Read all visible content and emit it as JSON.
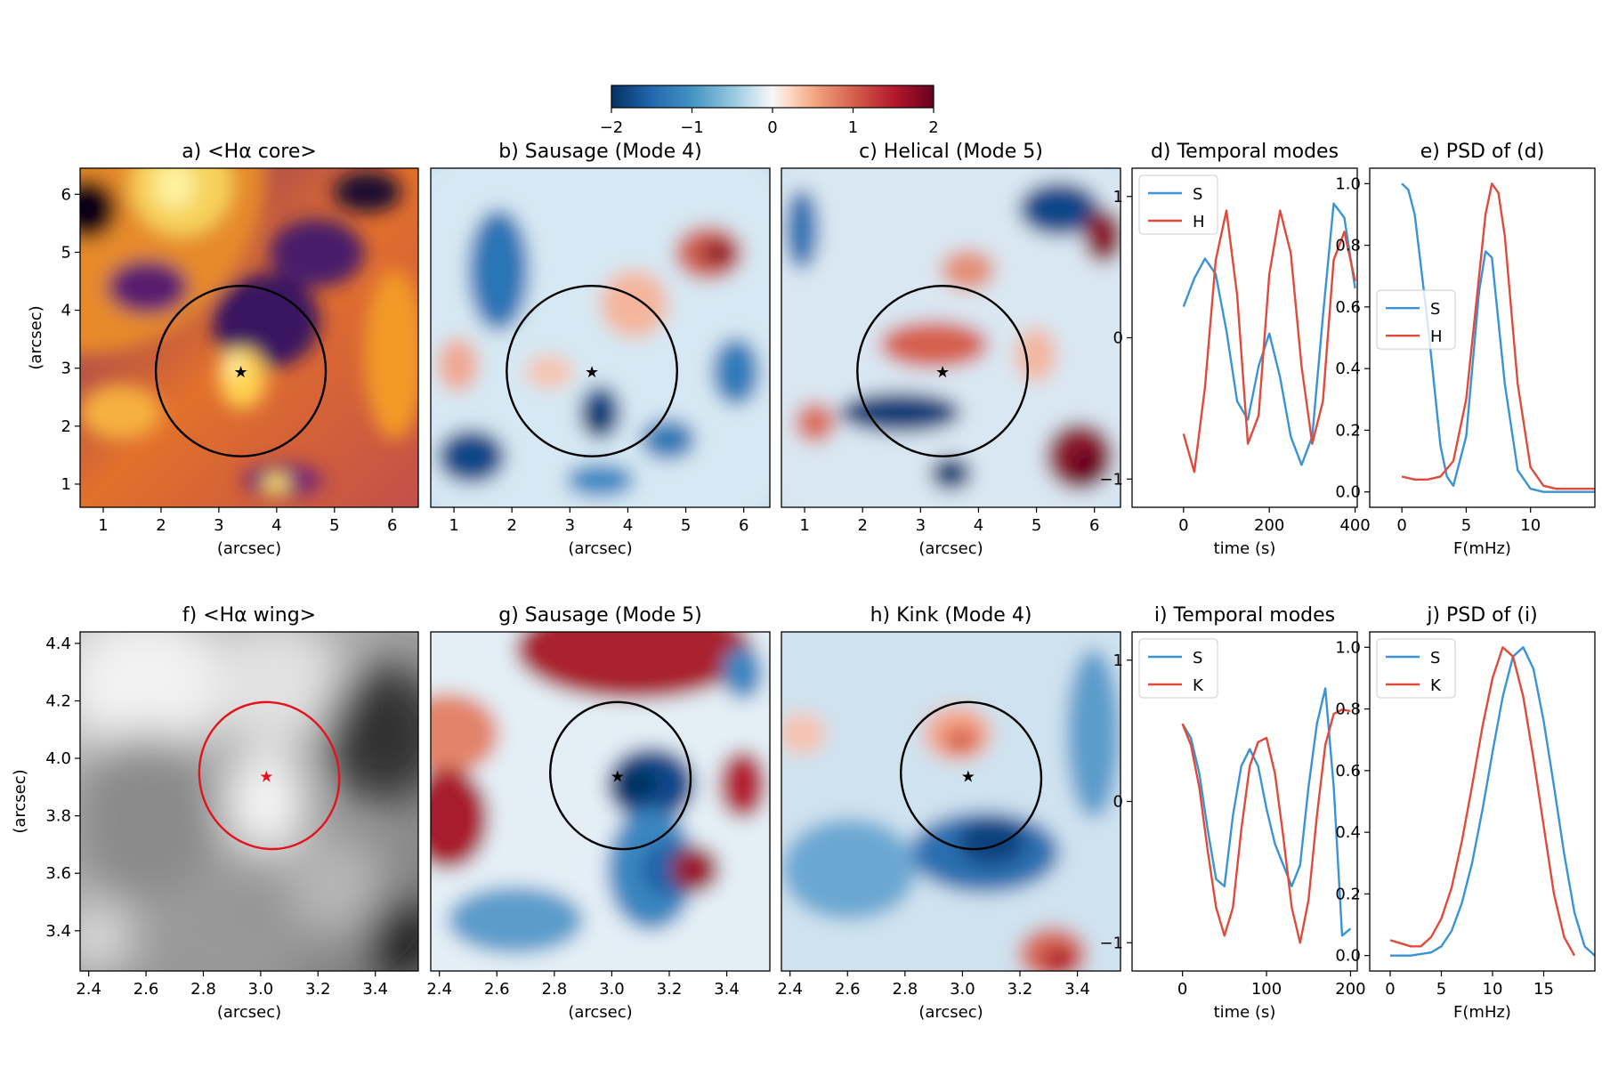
{
  "colorbar": {
    "ticks": [
      -2,
      -1,
      0,
      1,
      2
    ],
    "tick_labels": [
      "−2",
      "−1",
      "0",
      "1",
      "2"
    ],
    "colormap": "RdBu_r"
  },
  "chart_data": [
    {
      "id": "a",
      "type": "heatmap",
      "title": "a) <Hα core>",
      "xlabel": "(arcsec)",
      "ylabel": "(arcsec)",
      "xlim": [
        0.6,
        6.45
      ],
      "ylim": [
        0.6,
        6.45
      ],
      "xticks": [
        1,
        2,
        3,
        4,
        5,
        6
      ],
      "yticks": [
        1,
        2,
        3,
        4,
        5,
        6
      ],
      "colormap": "inferno",
      "circle": {
        "cx": 3.38,
        "cy": 2.95,
        "rx": 1.47,
        "ry": 1.47,
        "color": "#000000"
      },
      "star": {
        "x": 3.38,
        "y": 2.95,
        "color": "#000000"
      }
    },
    {
      "id": "b",
      "type": "heatmap",
      "title": "b) Sausage (Mode 4)",
      "xlabel": "(arcsec)",
      "ylabel": "",
      "xlim": [
        0.6,
        6.45
      ],
      "ylim": [
        0.6,
        6.45
      ],
      "xticks": [
        1,
        2,
        3,
        4,
        5,
        6
      ],
      "yticks": [],
      "colormap": "RdBu_r",
      "circle": {
        "cx": 3.38,
        "cy": 2.95,
        "rx": 1.47,
        "ry": 1.47,
        "color": "#000000"
      },
      "star": {
        "x": 3.38,
        "y": 2.95,
        "color": "#000000"
      }
    },
    {
      "id": "c",
      "type": "heatmap",
      "title": "c) Helical (Mode 5)",
      "xlabel": "(arcsec)",
      "ylabel": "",
      "xlim": [
        0.6,
        6.45
      ],
      "ylim": [
        0.6,
        6.45
      ],
      "xticks": [
        1,
        2,
        3,
        4,
        5,
        6
      ],
      "yticks": [],
      "colormap": "RdBu_r",
      "circle": {
        "cx": 3.38,
        "cy": 2.95,
        "rx": 1.47,
        "ry": 1.47,
        "color": "#000000"
      },
      "star": {
        "x": 3.38,
        "y": 2.95,
        "color": "#000000"
      }
    },
    {
      "id": "d",
      "type": "line",
      "title": "d) Temporal modes",
      "xlabel": "time (s)",
      "ylabel": "",
      "xlim": [
        -120,
        405
      ],
      "ylim": [
        -1.2,
        1.2
      ],
      "xticks": [
        0,
        200,
        400
      ],
      "yticks": [
        -1,
        0,
        1
      ],
      "ytick_labels": [
        "−1",
        "0",
        "1"
      ],
      "legend": "top-left",
      "series": [
        {
          "name": "S",
          "color": "#3a93d6",
          "x": [
            0,
            25,
            50,
            75,
            100,
            125,
            150,
            175,
            200,
            225,
            250,
            275,
            300,
            325,
            350,
            375,
            400
          ],
          "y": [
            0.22,
            0.42,
            0.56,
            0.45,
            0.05,
            -0.45,
            -0.58,
            -0.2,
            0.03,
            -0.28,
            -0.7,
            -0.9,
            -0.7,
            0.15,
            0.95,
            0.85,
            0.35
          ]
        },
        {
          "name": "H",
          "color": "#e04a3a",
          "x": [
            0,
            25,
            50,
            75,
            100,
            125,
            150,
            175,
            200,
            225,
            250,
            275,
            300,
            325,
            350,
            375,
            400
          ],
          "y": [
            -0.68,
            -0.95,
            -0.35,
            0.55,
            0.9,
            0.3,
            -0.75,
            -0.55,
            0.45,
            0.9,
            0.6,
            -0.2,
            -0.75,
            -0.45,
            0.55,
            0.75,
            0.4
          ]
        }
      ]
    },
    {
      "id": "e",
      "type": "line",
      "title": "e) PSD of (d)",
      "xlabel": "F(mHz)",
      "ylabel": "",
      "xlim": [
        -2.5,
        15
      ],
      "ylim": [
        -0.05,
        1.05
      ],
      "xticks": [
        0,
        5,
        10
      ],
      "yticks": [
        0.0,
        0.2,
        0.4,
        0.6,
        0.8,
        1.0
      ],
      "ytick_labels": [
        "0.0",
        "0.2",
        "0.4",
        "0.6",
        "0.8",
        "1.0"
      ],
      "legend": "center-left",
      "series": [
        {
          "name": "S",
          "color": "#3a93d6",
          "x": [
            0,
            0.5,
            1,
            2,
            3,
            3.5,
            4,
            5,
            6,
            6.5,
            7,
            8,
            9,
            10,
            11,
            12,
            13,
            14,
            15
          ],
          "y": [
            1.0,
            0.98,
            0.9,
            0.55,
            0.15,
            0.05,
            0.02,
            0.18,
            0.65,
            0.78,
            0.76,
            0.35,
            0.07,
            0.01,
            0.0,
            0.0,
            0.0,
            0.0,
            0.0
          ]
        },
        {
          "name": "H",
          "color": "#e04a3a",
          "x": [
            0,
            1,
            2,
            3,
            4,
            5,
            6,
            6.5,
            7,
            7.5,
            8,
            9,
            10,
            11,
            12,
            13,
            14,
            15
          ],
          "y": [
            0.05,
            0.04,
            0.04,
            0.05,
            0.1,
            0.3,
            0.7,
            0.9,
            1.0,
            0.97,
            0.83,
            0.35,
            0.08,
            0.02,
            0.01,
            0.01,
            0.01,
            0.01
          ]
        }
      ]
    },
    {
      "id": "f",
      "type": "heatmap",
      "title": "f) <Hα wing>",
      "xlabel": "(arcsec)",
      "ylabel": "(arcsec)",
      "xlim": [
        2.37,
        3.55
      ],
      "ylim": [
        3.26,
        4.44
      ],
      "xticks": [
        2.4,
        2.6,
        2.8,
        3.0,
        3.2,
        3.4
      ],
      "yticks": [
        3.4,
        3.6,
        3.8,
        4.0,
        4.2,
        4.4
      ],
      "xtick_labels": [
        "2.4",
        "2.6",
        "2.8",
        "3.0",
        "3.2",
        "3.4"
      ],
      "ytick_labels": [
        "3.4",
        "3.6",
        "3.8",
        "4.0",
        "4.2",
        "4.4"
      ],
      "colormap": "gray",
      "circle": {
        "cx": 3.03,
        "cy": 3.94,
        "rx": 0.25,
        "ry": 0.25,
        "color": "#e3121c"
      },
      "star": {
        "x": 3.02,
        "y": 3.94,
        "color": "#e3121c"
      }
    },
    {
      "id": "g",
      "type": "heatmap",
      "title": "g) Sausage (Mode 5)",
      "xlabel": "(arcsec)",
      "ylabel": "",
      "xlim": [
        2.37,
        3.55
      ],
      "ylim": [
        3.26,
        4.44
      ],
      "xticks": [
        2.4,
        2.6,
        2.8,
        3.0,
        3.2,
        3.4
      ],
      "yticks": [],
      "xtick_labels": [
        "2.4",
        "2.6",
        "2.8",
        "3.0",
        "3.2",
        "3.4"
      ],
      "colormap": "RdBu_r",
      "circle": {
        "cx": 3.03,
        "cy": 3.94,
        "rx": 0.25,
        "ry": 0.25,
        "color": "#000000"
      },
      "star": {
        "x": 3.02,
        "y": 3.94,
        "color": "#000000"
      }
    },
    {
      "id": "h",
      "type": "heatmap",
      "title": "h) Kink (Mode 4)",
      "xlabel": "(arcsec)",
      "ylabel": "",
      "xlim": [
        2.37,
        3.55
      ],
      "ylim": [
        3.26,
        4.44
      ],
      "xticks": [
        2.4,
        2.6,
        2.8,
        3.0,
        3.2,
        3.4
      ],
      "yticks": [],
      "xtick_labels": [
        "2.4",
        "2.6",
        "2.8",
        "3.0",
        "3.2",
        "3.4"
      ],
      "colormap": "RdBu_r",
      "circle": {
        "cx": 3.03,
        "cy": 3.94,
        "rx": 0.25,
        "ry": 0.25,
        "color": "#000000"
      },
      "star": {
        "x": 3.02,
        "y": 3.94,
        "color": "#000000"
      }
    },
    {
      "id": "i",
      "type": "line",
      "title": "i) Temporal modes",
      "xlabel": "time (s)",
      "ylabel": "",
      "xlim": [
        -60,
        208
      ],
      "ylim": [
        -1.2,
        1.2
      ],
      "xticks": [
        0,
        100,
        200
      ],
      "yticks": [
        -1,
        0,
        1
      ],
      "ytick_labels": [
        "−1",
        "0",
        "1"
      ],
      "legend": "top-left",
      "series": [
        {
          "name": "S",
          "color": "#3a93d6",
          "x": [
            0,
            10,
            20,
            30,
            40,
            50,
            60,
            70,
            80,
            90,
            100,
            110,
            120,
            130,
            140,
            150,
            160,
            170,
            180,
            190,
            200
          ],
          "y": [
            0.55,
            0.45,
            0.2,
            -0.2,
            -0.55,
            -0.6,
            -0.1,
            0.25,
            0.37,
            0.25,
            -0.05,
            -0.3,
            -0.45,
            -0.6,
            -0.45,
            0.1,
            0.55,
            0.8,
            0.1,
            -0.95,
            -0.9
          ]
        },
        {
          "name": "K",
          "color": "#e04a3a",
          "x": [
            0,
            10,
            20,
            30,
            40,
            50,
            60,
            70,
            80,
            90,
            100,
            110,
            120,
            130,
            140,
            150,
            160,
            170,
            180,
            190,
            200
          ],
          "y": [
            0.55,
            0.4,
            0.1,
            -0.35,
            -0.75,
            -0.95,
            -0.75,
            -0.2,
            0.25,
            0.42,
            0.45,
            0.2,
            -0.25,
            -0.75,
            -1.0,
            -0.7,
            -0.1,
            0.4,
            0.62,
            0.65,
            0.64
          ]
        }
      ]
    },
    {
      "id": "j",
      "type": "line",
      "title": "j) PSD of (i)",
      "xlabel": "F(mHz)",
      "ylabel": "",
      "xlim": [
        -2,
        20
      ],
      "ylim": [
        -0.05,
        1.05
      ],
      "xticks": [
        0,
        5,
        10,
        15
      ],
      "yticks": [
        0.0,
        0.2,
        0.4,
        0.6,
        0.8,
        1.0
      ],
      "ytick_labels": [
        "0.0",
        "0.2",
        "0.4",
        "0.6",
        "0.8",
        "1.0"
      ],
      "legend": "top-left",
      "series": [
        {
          "name": "S",
          "color": "#3a93d6",
          "x": [
            0,
            2,
            4,
            5,
            6,
            7,
            8,
            9,
            10,
            11,
            12,
            13,
            14,
            15,
            16,
            17,
            18,
            19,
            20
          ],
          "y": [
            0.0,
            0.0,
            0.01,
            0.03,
            0.08,
            0.17,
            0.3,
            0.47,
            0.66,
            0.84,
            0.97,
            1.0,
            0.93,
            0.76,
            0.55,
            0.33,
            0.14,
            0.03,
            0.0
          ]
        },
        {
          "name": "K",
          "color": "#e04a3a",
          "x": [
            0,
            1,
            2,
            3,
            4,
            5,
            6,
            7,
            8,
            9,
            10,
            11,
            12,
            13,
            14,
            15,
            16,
            17,
            18
          ],
          "y": [
            0.05,
            0.04,
            0.03,
            0.03,
            0.06,
            0.12,
            0.22,
            0.37,
            0.55,
            0.74,
            0.9,
            1.0,
            0.97,
            0.84,
            0.64,
            0.42,
            0.2,
            0.06,
            0.0
          ]
        }
      ]
    }
  ]
}
